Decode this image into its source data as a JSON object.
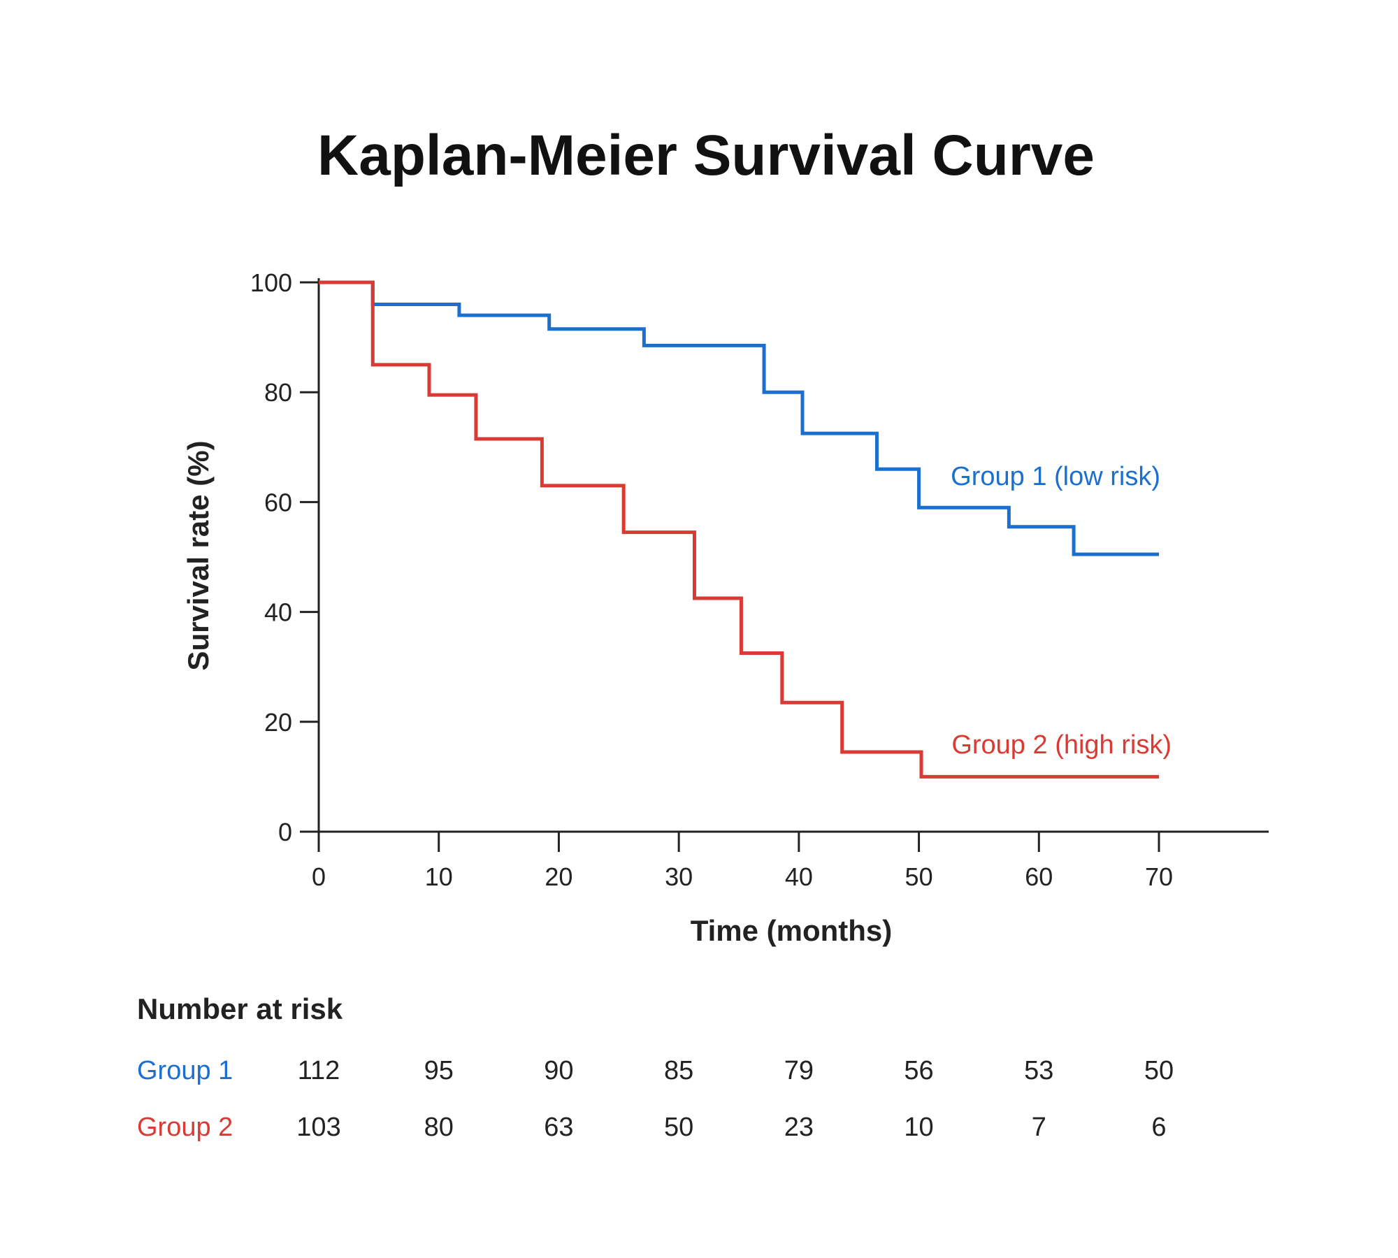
{
  "chart_data": {
    "type": "line",
    "title": "Kaplan-Meier Survival Curve",
    "xlabel": "Time (months)",
    "ylabel": "Survival rate (%)",
    "xlim": [
      0,
      79
    ],
    "ylim": [
      0,
      100
    ],
    "xticks": [
      0,
      10,
      20,
      30,
      40,
      50,
      60,
      70
    ],
    "yticks": [
      0,
      20,
      40,
      60,
      80,
      100
    ],
    "grid": false,
    "series": [
      {
        "name": "Group 1 (low risk)",
        "color": "#1a6fcf",
        "step_points": [
          [
            0,
            100
          ],
          [
            4.5,
            96
          ],
          [
            11.7,
            94
          ],
          [
            19.2,
            91.5
          ],
          [
            27.1,
            88.5
          ],
          [
            37.1,
            80
          ],
          [
            40.3,
            72.5
          ],
          [
            46.5,
            66
          ],
          [
            50.0,
            59
          ],
          [
            57.5,
            55.5
          ],
          [
            62.9,
            50.5
          ],
          [
            70,
            50.5
          ]
        ]
      },
      {
        "name": "Group 2 (high risk)",
        "color": "#d93a33",
        "step_points": [
          [
            0,
            100
          ],
          [
            4.5,
            85
          ],
          [
            9.2,
            79.5
          ],
          [
            13.1,
            71.5
          ],
          [
            18.6,
            63
          ],
          [
            25.4,
            54.5
          ],
          [
            31.3,
            42.5
          ],
          [
            35.2,
            32.5
          ],
          [
            38.6,
            23.5
          ],
          [
            43.6,
            14.5
          ],
          [
            50.2,
            10
          ],
          [
            70,
            10
          ]
        ]
      }
    ],
    "number_at_risk": {
      "title": "Number at risk",
      "times": [
        0,
        10,
        20,
        30,
        40,
        50,
        60,
        70
      ],
      "groups": [
        {
          "name": "Group 1",
          "color": "#1a6fcf",
          "values": [
            112,
            95,
            90,
            85,
            79,
            56,
            53,
            50
          ]
        },
        {
          "name": "Group 2",
          "color": "#d93a33",
          "values": [
            103,
            80,
            63,
            50,
            23,
            10,
            7,
            6
          ]
        }
      ]
    }
  }
}
